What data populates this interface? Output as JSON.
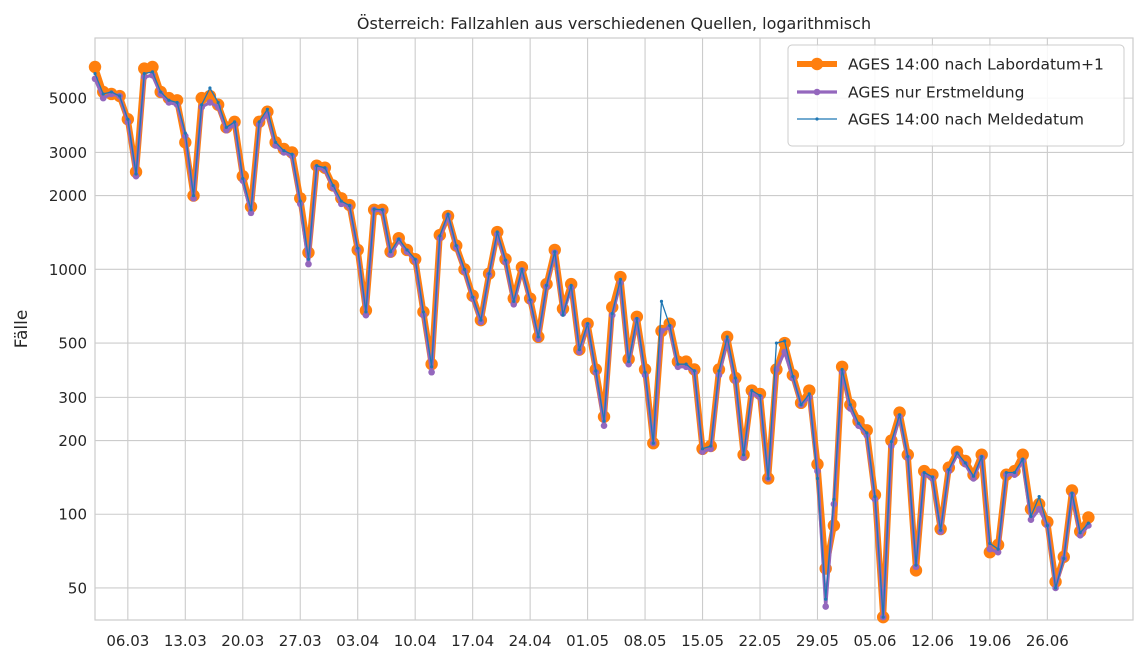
{
  "chart_data": {
    "type": "line",
    "title": "Österreich: Fallzahlen aus verschiedenen Quellen, logarithmisch",
    "xlabel": "",
    "ylabel": "Fälle",
    "yscale": "log",
    "ylim": [
      37,
      8800
    ],
    "grid": true,
    "legend_position": "top-right",
    "x_tick_labels": [
      "06.03",
      "13.03",
      "20.03",
      "27.03",
      "03.04",
      "10.04",
      "17.04",
      "24.04",
      "01.05",
      "08.05",
      "15.05",
      "22.05",
      "29.05",
      "05.06",
      "12.06",
      "19.06",
      "26.06"
    ],
    "y_tick_labels": [
      "50",
      "100",
      "200",
      "300",
      "500",
      "1000",
      "2000",
      "3000",
      "5000"
    ],
    "y_ticks": [
      50,
      100,
      200,
      300,
      500,
      1000,
      2000,
      3000,
      5000
    ],
    "colors": {
      "orange": "#ff7f0e",
      "purple": "#9467bd",
      "blue": "#1f77b4",
      "grid": "#cccccc"
    },
    "series": [
      {
        "name": "AGES 14:00 nach Labordatum+1",
        "values": [
          6700,
          5300,
          5200,
          5100,
          4100,
          2500,
          6600,
          6700,
          5300,
          5000,
          4900,
          3300,
          2000,
          5000,
          5100,
          4700,
          3800,
          4000,
          2400,
          1800,
          4000,
          4400,
          3300,
          3100,
          3000,
          1950,
          1170,
          2650,
          2600,
          2200,
          1950,
          1830,
          1200,
          680,
          1750,
          1750,
          1180,
          1340,
          1200,
          1100,
          670,
          410,
          1380,
          1650,
          1250,
          1000,
          780,
          620,
          960,
          1420,
          1100,
          760,
          1020,
          760,
          530,
          870,
          1200,
          690,
          870,
          470,
          600,
          390,
          250,
          700,
          930,
          430,
          640,
          390,
          195,
          560,
          600,
          420,
          420,
          390,
          185,
          190,
          390,
          530,
          360,
          175,
          320,
          310,
          140,
          390,
          500,
          370,
          285,
          320,
          160,
          60,
          90,
          400,
          280,
          240,
          220,
          120,
          38,
          200,
          260,
          175,
          59,
          150,
          145,
          87,
          155,
          180,
          165,
          145,
          175,
          70,
          75,
          145,
          150,
          175,
          105,
          110,
          93,
          53,
          67,
          125,
          85,
          97
        ],
        "start_day": 0
      },
      {
        "name": "AGES nur Erstmeldung",
        "values": [
          6000,
          5000,
          5200,
          5100,
          4000,
          2400,
          6100,
          6200,
          5200,
          4800,
          4700,
          3500,
          1950,
          4600,
          4800,
          4600,
          3700,
          3900,
          2300,
          1700,
          3900,
          4300,
          3200,
          3000,
          2900,
          1850,
          1050,
          2600,
          2550,
          2150,
          1850,
          1800,
          1200,
          650,
          1750,
          1730,
          1150,
          1310,
          1180,
          1080,
          650,
          380,
          1340,
          1650,
          1230,
          980,
          760,
          610,
          950,
          1390,
          1070,
          720,
          990,
          740,
          520,
          850,
          1170,
          660,
          840,
          460,
          590,
          380,
          230,
          650,
          880,
          410,
          620,
          370,
          195,
          560,
          580,
          400,
          400,
          380,
          180,
          185,
          370,
          510,
          350,
          170,
          310,
          300,
          140,
          390,
          460,
          360,
          280,
          300,
          150,
          42,
          110,
          380,
          270,
          230,
          210,
          115,
          38,
          190,
          250,
          170,
          61,
          145,
          140,
          85,
          150,
          175,
          160,
          140,
          170,
          72,
          70,
          145,
          145,
          165,
          95,
          105,
          90,
          50,
          66,
          120,
          82,
          90
        ],
        "start_day": 0
      },
      {
        "name": "AGES 14:00 nach Meldedatum",
        "values": [
          6300,
          5200,
          5300,
          5100,
          4100,
          2450,
          6300,
          6400,
          5300,
          4900,
          4800,
          3600,
          2000,
          4700,
          5500,
          4800,
          3800,
          4000,
          2350,
          1750,
          4000,
          4500,
          3300,
          3050,
          2950,
          1900,
          1100,
          2650,
          2600,
          2200,
          1900,
          1820,
          1220,
          670,
          1760,
          1750,
          1180,
          1330,
          1200,
          1100,
          670,
          400,
          1370,
          1680,
          1250,
          1000,
          770,
          620,
          960,
          1420,
          1090,
          740,
          1000,
          750,
          530,
          860,
          1180,
          650,
          860,
          470,
          600,
          385,
          240,
          660,
          910,
          420,
          630,
          380,
          195,
          740,
          590,
          410,
          410,
          385,
          185,
          190,
          385,
          530,
          360,
          175,
          320,
          305,
          140,
          500,
          510,
          365,
          280,
          310,
          140,
          45,
          115,
          390,
          280,
          235,
          215,
          118,
          38,
          198,
          255,
          172,
          62,
          148,
          142,
          86,
          152,
          178,
          162,
          143,
          172,
          76,
          72,
          148,
          148,
          168,
          98,
          118,
          90,
          50,
          66,
          122,
          84,
          92
        ],
        "start_day": 0
      }
    ]
  }
}
